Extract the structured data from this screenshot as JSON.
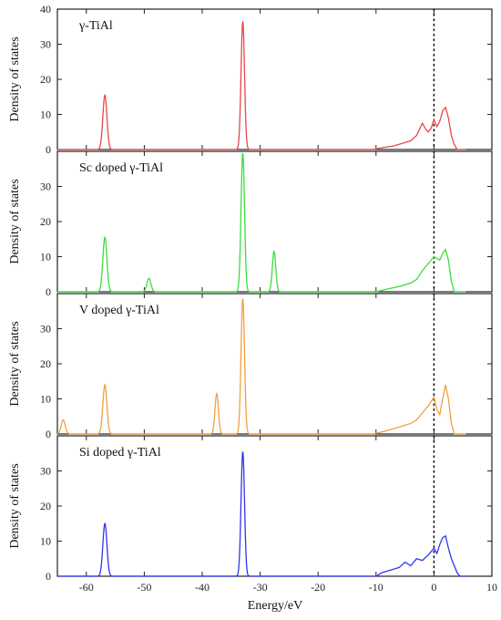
{
  "chart_data": {
    "type": "line",
    "xlabel": "Energy/eV",
    "ylabel": "Density of states",
    "xlim": [
      -65,
      10
    ],
    "x_ticks": [
      -60,
      -50,
      -40,
      -30,
      -20,
      -10,
      0,
      10
    ],
    "ylim": [
      0,
      40
    ],
    "y_ticks": [
      0,
      10,
      20,
      30,
      40
    ],
    "fermi_level": 0,
    "panels": [
      {
        "title": "γ-TiAl",
        "color": "#e8474a",
        "peaks": [
          {
            "x": -56.8,
            "height": 15.5,
            "width": 0.35
          },
          {
            "x": -33.0,
            "height": 36.5,
            "width": 0.3
          }
        ],
        "valence_band": [
          [
            -10.5,
            0
          ],
          [
            -9,
            0.5
          ],
          [
            -7,
            1
          ],
          [
            -5,
            2
          ],
          [
            -4,
            2.5
          ],
          [
            -3,
            4
          ],
          [
            -2,
            7.5
          ],
          [
            -1.5,
            6
          ],
          [
            -1,
            5
          ],
          [
            -0.5,
            6
          ],
          [
            0,
            8.5
          ],
          [
            0.5,
            6.5
          ],
          [
            1,
            8
          ],
          [
            1.5,
            11
          ],
          [
            2,
            12
          ],
          [
            2.5,
            9
          ],
          [
            3,
            4
          ],
          [
            3.5,
            1.5
          ],
          [
            4,
            0
          ]
        ]
      },
      {
        "title": "Sc doped γ-TiAl",
        "color": "#3ddc3d",
        "peaks": [
          {
            "x": -56.8,
            "height": 15.5,
            "width": 0.35
          },
          {
            "x": -49.2,
            "height": 3.8,
            "width": 0.35
          },
          {
            "x": -33.0,
            "height": 39.5,
            "width": 0.3
          },
          {
            "x": -27.6,
            "height": 11.5,
            "width": 0.3
          }
        ],
        "valence_band": [
          [
            -10,
            0
          ],
          [
            -8,
            0.8
          ],
          [
            -6,
            1.5
          ],
          [
            -5,
            2
          ],
          [
            -4,
            2.5
          ],
          [
            -3,
            3.5
          ],
          [
            -2,
            6
          ],
          [
            -1,
            8
          ],
          [
            0,
            10
          ],
          [
            0.5,
            9.5
          ],
          [
            1,
            9
          ],
          [
            1.5,
            11
          ],
          [
            2,
            12
          ],
          [
            2.5,
            9
          ],
          [
            3,
            3
          ],
          [
            3.5,
            0
          ]
        ]
      },
      {
        "title": "V doped γ-TiAl",
        "color": "#f2a040",
        "peaks": [
          {
            "x": -64.0,
            "height": 4.0,
            "width": 0.35
          },
          {
            "x": -56.8,
            "height": 14.0,
            "width": 0.35
          },
          {
            "x": -37.5,
            "height": 11.5,
            "width": 0.3
          },
          {
            "x": -33.0,
            "height": 38.5,
            "width": 0.3
          }
        ],
        "valence_band": [
          [
            -10.5,
            0
          ],
          [
            -8,
            1
          ],
          [
            -6,
            2
          ],
          [
            -4,
            3
          ],
          [
            -3,
            4
          ],
          [
            -2,
            6
          ],
          [
            -1,
            8
          ],
          [
            0,
            10.5
          ],
          [
            0.5,
            7
          ],
          [
            1,
            5.5
          ],
          [
            1.5,
            10
          ],
          [
            2,
            14
          ],
          [
            2.5,
            10
          ],
          [
            3,
            3
          ],
          [
            3.5,
            0
          ]
        ]
      },
      {
        "title": "Si doped γ-TiAl",
        "color": "#3333ee",
        "peaks": [
          {
            "x": -56.8,
            "height": 15.0,
            "width": 0.35
          },
          {
            "x": -33.0,
            "height": 35.5,
            "width": 0.3
          }
        ],
        "valence_band": [
          [
            -10,
            0
          ],
          [
            -9,
            1
          ],
          [
            -8,
            1.5
          ],
          [
            -7,
            2
          ],
          [
            -6,
            2.5
          ],
          [
            -5,
            4
          ],
          [
            -4,
            3
          ],
          [
            -3,
            5
          ],
          [
            -2,
            4.5
          ],
          [
            -1,
            6
          ],
          [
            0,
            8
          ],
          [
            0.5,
            6.5
          ],
          [
            1,
            9
          ],
          [
            1.5,
            11
          ],
          [
            2,
            11.5
          ],
          [
            2.5,
            8
          ],
          [
            3,
            5
          ],
          [
            4,
            1
          ],
          [
            4.5,
            0
          ]
        ]
      }
    ]
  }
}
